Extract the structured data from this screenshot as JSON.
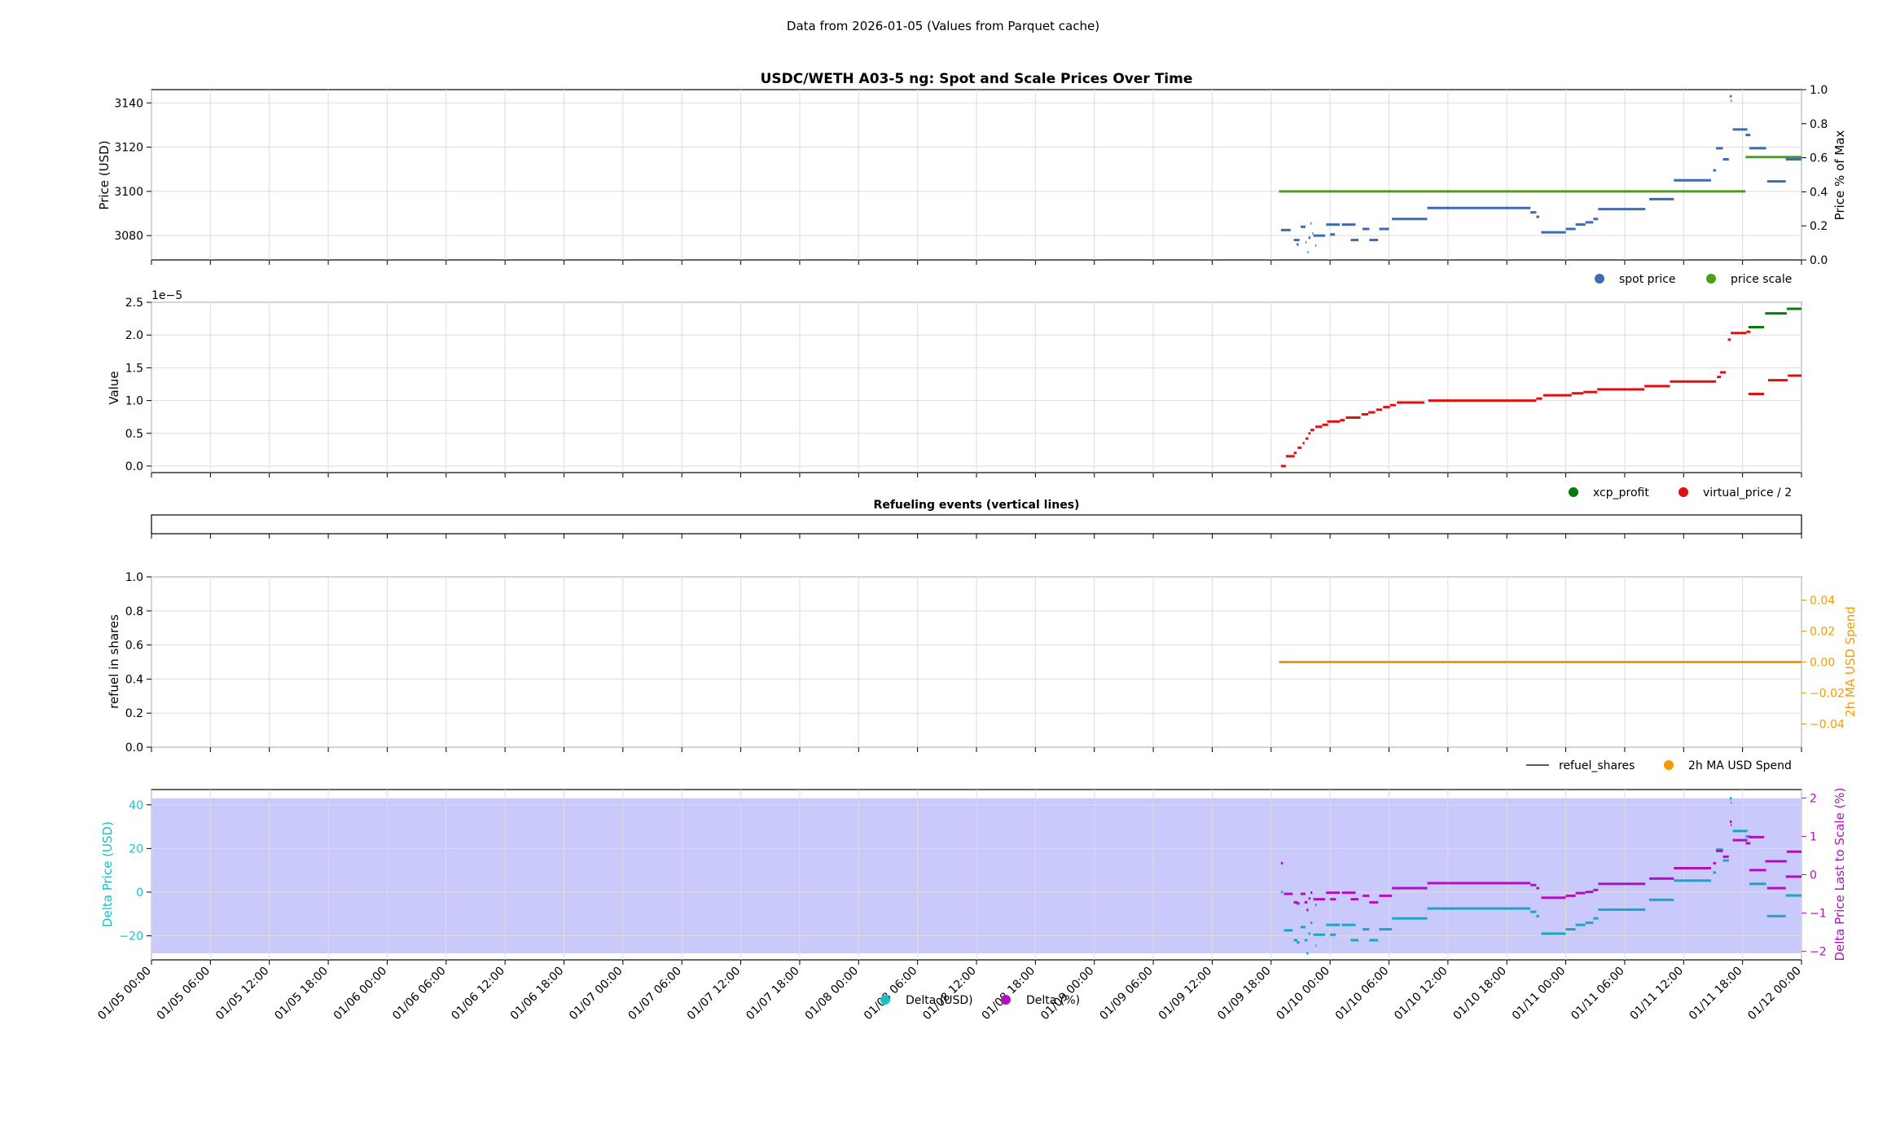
{
  "header": {
    "subtitle": "Data from 2026-01-05 (Values from Parquet cache)"
  },
  "colors": {
    "spot": "#3c6db0",
    "scale": "#4aa01a",
    "xcp": "#0a7a0a",
    "virtual": "#e01010",
    "spend": "#f59b00",
    "refuel": "#222222",
    "delta_usd": "#1aa6c8",
    "delta_pct": "#b010c0",
    "band": "#c9c9fb",
    "cyan_axis": "#1ac0c8",
    "magenta_axis": "#b010c0",
    "orange_axis": "#f59b00"
  },
  "x_axis": {
    "range": [
      "01/05 00:00",
      "01/12 00:00"
    ],
    "tick_labels": [
      "01/05 00:00",
      "01/05 06:00",
      "01/05 12:00",
      "01/05 18:00",
      "01/06 00:00",
      "01/06 06:00",
      "01/06 12:00",
      "01/06 18:00",
      "01/07 00:00",
      "01/07 06:00",
      "01/07 12:00",
      "01/07 18:00",
      "01/08 00:00",
      "01/08 06:00",
      "01/08 12:00",
      "01/08 18:00",
      "01/09 00:00",
      "01/09 06:00",
      "01/09 12:00",
      "01/09 18:00",
      "01/10 00:00",
      "01/10 06:00",
      "01/10 12:00",
      "01/10 18:00",
      "01/11 00:00",
      "01/11 06:00",
      "01/11 12:00",
      "01/11 18:00",
      "01/12 00:00"
    ]
  },
  "chart_data": [
    {
      "type": "scatter",
      "title": "USDC/WETH A03-5 ng: Spot and Scale Prices Over Time",
      "ylabel": "Price (USD)",
      "ylabel_right": "Price % of Max",
      "ylim": [
        3069,
        3146
      ],
      "yticks": [
        3080,
        3100,
        3120,
        3140
      ],
      "ylim_right": [
        0,
        1
      ],
      "yticks_right": [
        "0.0",
        "0.2",
        "0.4",
        "0.6",
        "0.8",
        "1.0"
      ],
      "grid": true,
      "legend": {
        "placement": "below-right",
        "entries": [
          "spot price",
          "price scale"
        ]
      },
      "series": [
        {
          "name": "spot price",
          "segments": [
            [
              115.0,
              116.0,
              3082.5
            ],
            [
              116.3,
              116.9,
              3078
            ],
            [
              116.6,
              116.8,
              3076
            ],
            [
              117.0,
              117.5,
              3084
            ],
            [
              117.5,
              117.6,
              3077
            ],
            [
              117.7,
              117.8,
              3072.5
            ],
            [
              117.8,
              118.0,
              3079
            ],
            [
              118.0,
              118.1,
              3085.5
            ],
            [
              118.2,
              118.3,
              3081
            ],
            [
              118.5,
              118.6,
              3075.5
            ],
            [
              118.3,
              119.5,
              3080
            ],
            [
              119.6,
              121.0,
              3085
            ],
            [
              120.0,
              120.5,
              3080.5
            ],
            [
              121.2,
              122.6,
              3085
            ],
            [
              122.1,
              122.9,
              3078
            ],
            [
              123.3,
              124.0,
              3083
            ],
            [
              124.0,
              124.9,
              3078
            ],
            [
              125.0,
              126.0,
              3083
            ],
            [
              126.3,
              129.9,
              3087.5
            ],
            [
              129.9,
              140.4,
              3092.5
            ],
            [
              140.4,
              141.0,
              3090.5
            ],
            [
              141.0,
              141.3,
              3088.5
            ],
            [
              141.5,
              144.0,
              3081.5
            ],
            [
              144.0,
              145.0,
              3083
            ],
            [
              145.0,
              146.0,
              3085
            ],
            [
              146.0,
              146.8,
              3086
            ],
            [
              146.8,
              147.3,
              3087.5
            ],
            [
              147.3,
              152.1,
              3092
            ],
            [
              152.5,
              155.0,
              3096.5
            ],
            [
              155.0,
              158.8,
              3105
            ],
            [
              159.0,
              159.3,
              3109.5
            ],
            [
              159.3,
              160.0,
              3119.5
            ],
            [
              160.0,
              160.6,
              3114.5
            ],
            [
              160.7,
              160.9,
              3143
            ],
            [
              160.8,
              160.9,
              3141
            ],
            [
              161.0,
              162.5,
              3128
            ],
            [
              162.3,
              162.8,
              3125.5
            ],
            [
              162.7,
              164.4,
              3119.5
            ],
            [
              164.5,
              166.4,
              3104.5
            ],
            [
              166.4,
              168.0,
              3114.5
            ]
          ]
        },
        {
          "name": "price scale",
          "segments": [
            [
              114.8,
              162.3,
              3100
            ],
            [
              162.3,
              168.0,
              3115.5
            ]
          ]
        }
      ]
    },
    {
      "type": "scatter",
      "ylabel": "Value",
      "offset_text": "1e−5",
      "ylim": [
        -0.1,
        2.5
      ],
      "yticks": [
        "0.0",
        "0.5",
        "1.0",
        "1.5",
        "2.0",
        "2.5"
      ],
      "grid": true,
      "legend": {
        "placement": "below-right",
        "entries": [
          "xcp_profit",
          "virtual_price / 2"
        ]
      },
      "series": [
        {
          "name": "virtual_price / 2",
          "segments": [
            [
              115.0,
              115.5,
              0.0
            ],
            [
              115.5,
              116.4,
              0.15
            ],
            [
              116.3,
              116.6,
              0.2
            ],
            [
              116.7,
              117.1,
              0.28
            ],
            [
              117.2,
              117.4,
              0.35
            ],
            [
              117.5,
              117.8,
              0.42
            ],
            [
              117.8,
              118.0,
              0.5
            ],
            [
              118.0,
              118.4,
              0.55
            ],
            [
              118.5,
              119.2,
              0.6
            ],
            [
              119.2,
              119.8,
              0.63
            ],
            [
              119.7,
              121.0,
              0.68
            ],
            [
              121.0,
              121.5,
              0.7
            ],
            [
              121.6,
              123.1,
              0.74
            ],
            [
              123.2,
              123.9,
              0.79
            ],
            [
              123.9,
              124.6,
              0.82
            ],
            [
              124.7,
              125.3,
              0.86
            ],
            [
              125.4,
              126.1,
              0.9
            ],
            [
              126.1,
              126.7,
              0.93
            ],
            [
              126.8,
              129.6,
              0.97
            ],
            [
              130.0,
              141.0,
              1.0
            ],
            [
              141.0,
              141.6,
              1.03
            ],
            [
              141.7,
              144.6,
              1.08
            ],
            [
              144.6,
              145.8,
              1.11
            ],
            [
              145.8,
              147.2,
              1.13
            ],
            [
              147.2,
              152.0,
              1.17
            ],
            [
              152.0,
              154.6,
              1.22
            ],
            [
              154.6,
              159.3,
              1.29
            ],
            [
              159.4,
              159.8,
              1.36
            ],
            [
              159.7,
              160.3,
              1.43
            ],
            [
              160.5,
              160.8,
              1.93
            ],
            [
              160.8,
              162.4,
              2.03
            ],
            [
              162.4,
              162.8,
              2.05
            ],
            [
              162.6,
              164.2,
              1.1
            ],
            [
              164.6,
              166.6,
              1.31
            ],
            [
              166.6,
              168.0,
              1.38
            ]
          ]
        },
        {
          "name": "xcp_profit",
          "segments": [
            [
              162.6,
              164.2,
              2.12
            ],
            [
              164.3,
              166.5,
              2.33
            ],
            [
              166.5,
              168.0,
              2.4
            ]
          ]
        }
      ]
    },
    {
      "type": "line",
      "title": "Refueling events (vertical lines)",
      "series": []
    },
    {
      "type": "line",
      "ylabel": "refuel in shares",
      "ylabel_right": "2h MA USD Spend",
      "ylim": [
        0,
        1
      ],
      "yticks": [
        "0.0",
        "0.2",
        "0.4",
        "0.6",
        "0.8",
        "1.0"
      ],
      "ylim_right": [
        -0.055,
        0.055
      ],
      "yticks_right": [
        "−0.04",
        "−0.02",
        "0.00",
        "0.02",
        "0.04"
      ],
      "grid": true,
      "legend": {
        "placement": "below-right",
        "entries": [
          "refuel_shares",
          "2h MA USD Spend"
        ]
      },
      "series": [
        {
          "name": "refuel_shares",
          "segments": []
        },
        {
          "name": "2h MA USD Spend",
          "segments": [
            [
              114.8,
              168.0,
              0.0
            ]
          ]
        }
      ]
    },
    {
      "type": "scatter",
      "ylabel": "Delta Price (USD)",
      "ylabel_right": "Delta Price Last to Scale (%)",
      "ylim": [
        -31,
        47
      ],
      "yticks": [
        "−20",
        "0",
        "20",
        "40"
      ],
      "ylim_right": [
        -2.22,
        2.22
      ],
      "yticks_right": [
        "−2",
        "−1",
        "0",
        "1",
        "2"
      ],
      "band": [
        -28,
        43
      ],
      "grid": true,
      "legend": {
        "placement": "bottom-center",
        "entries": [
          "Delta (USD)",
          "Delta (%)"
        ]
      },
      "series": [
        {
          "name": "Delta (USD)",
          "segments": [
            [
              115.0,
              115.2,
              0
            ],
            [
              115.3,
              116.2,
              -17.5
            ],
            [
              116.3,
              116.7,
              -22
            ],
            [
              116.6,
              116.9,
              -23
            ],
            [
              117.0,
              117.5,
              -16
            ],
            [
              117.4,
              117.7,
              -22
            ],
            [
              117.6,
              117.8,
              -28
            ],
            [
              117.8,
              118.0,
              -19
            ],
            [
              118.0,
              118.2,
              -14
            ],
            [
              118.3,
              119.5,
              -19.5
            ],
            [
              118.5,
              118.6,
              -24.5
            ],
            [
              119.6,
              121.0,
              -15
            ],
            [
              120.0,
              120.6,
              -19.5
            ],
            [
              121.2,
              122.6,
              -15
            ],
            [
              122.1,
              122.9,
              -22
            ],
            [
              123.3,
              124.0,
              -17
            ],
            [
              124.0,
              124.9,
              -22
            ],
            [
              125.0,
              126.3,
              -17
            ],
            [
              126.3,
              129.9,
              -12
            ],
            [
              129.9,
              140.4,
              -7.5
            ],
            [
              140.4,
              141.0,
              -9
            ],
            [
              141.0,
              141.3,
              -11
            ],
            [
              141.5,
              144.0,
              -19
            ],
            [
              144.0,
              145.0,
              -17
            ],
            [
              145.0,
              146.0,
              -15
            ],
            [
              146.0,
              146.8,
              -14
            ],
            [
              146.8,
              147.3,
              -12
            ],
            [
              147.3,
              152.1,
              -8
            ],
            [
              152.5,
              155.0,
              -3.5
            ],
            [
              155.0,
              158.8,
              5.3
            ],
            [
              159.0,
              159.3,
              9
            ],
            [
              159.3,
              160.0,
              19.5
            ],
            [
              160.0,
              160.6,
              14.5
            ],
            [
              160.7,
              160.9,
              43
            ],
            [
              160.8,
              160.9,
              41
            ],
            [
              161.0,
              162.5,
              28
            ],
            [
              162.3,
              162.8,
              25.5
            ],
            [
              162.7,
              164.4,
              3.8
            ],
            [
              164.5,
              166.4,
              -11
            ],
            [
              166.4,
              168.0,
              -1.5
            ]
          ]
        },
        {
          "name": "Delta (%)",
          "segments": [
            [
              115.0,
              115.2,
              0.3
            ],
            [
              115.3,
              116.2,
              -0.5
            ],
            [
              116.3,
              116.7,
              -0.72
            ],
            [
              116.6,
              116.9,
              -0.75
            ],
            [
              117.0,
              117.5,
              -0.5
            ],
            [
              117.4,
              117.7,
              -0.72
            ],
            [
              117.6,
              117.8,
              -0.92
            ],
            [
              117.8,
              118.0,
              -0.62
            ],
            [
              118.0,
              118.2,
              -0.47
            ],
            [
              118.3,
              119.5,
              -0.64
            ],
            [
              118.5,
              118.6,
              -0.79
            ],
            [
              119.6,
              121.0,
              -0.47
            ],
            [
              120.0,
              120.6,
              -0.64
            ],
            [
              121.2,
              122.6,
              -0.47
            ],
            [
              122.1,
              122.9,
              -0.64
            ],
            [
              123.3,
              124.0,
              -0.55
            ],
            [
              124.0,
              124.9,
              -0.72
            ],
            [
              125.0,
              126.3,
              -0.55
            ],
            [
              126.3,
              129.9,
              -0.35
            ],
            [
              129.9,
              140.4,
              -0.22
            ],
            [
              140.4,
              141.0,
              -0.27
            ],
            [
              141.0,
              141.3,
              -0.35
            ],
            [
              141.5,
              144.0,
              -0.6
            ],
            [
              144.0,
              145.0,
              -0.55
            ],
            [
              145.0,
              146.0,
              -0.48
            ],
            [
              146.0,
              146.8,
              -0.45
            ],
            [
              146.8,
              147.3,
              -0.4
            ],
            [
              147.3,
              152.1,
              -0.24
            ],
            [
              152.5,
              155.0,
              -0.1
            ],
            [
              155.0,
              158.8,
              0.17
            ],
            [
              159.0,
              159.3,
              0.3
            ],
            [
              159.3,
              160.0,
              0.62
            ],
            [
              160.0,
              160.6,
              0.47
            ],
            [
              160.7,
              160.9,
              1.38
            ],
            [
              160.8,
              160.9,
              1.3
            ],
            [
              161.0,
              162.5,
              0.9
            ],
            [
              162.3,
              162.8,
              0.82
            ],
            [
              162.7,
              164.4,
              0.12
            ],
            [
              164.5,
              166.4,
              -0.35
            ],
            [
              166.4,
              168.0,
              -0.05
            ],
            [
              162.6,
              164.2,
              0.98
            ],
            [
              164.3,
              166.5,
              0.35
            ],
            [
              166.5,
              168.0,
              0.6
            ]
          ]
        }
      ]
    }
  ]
}
